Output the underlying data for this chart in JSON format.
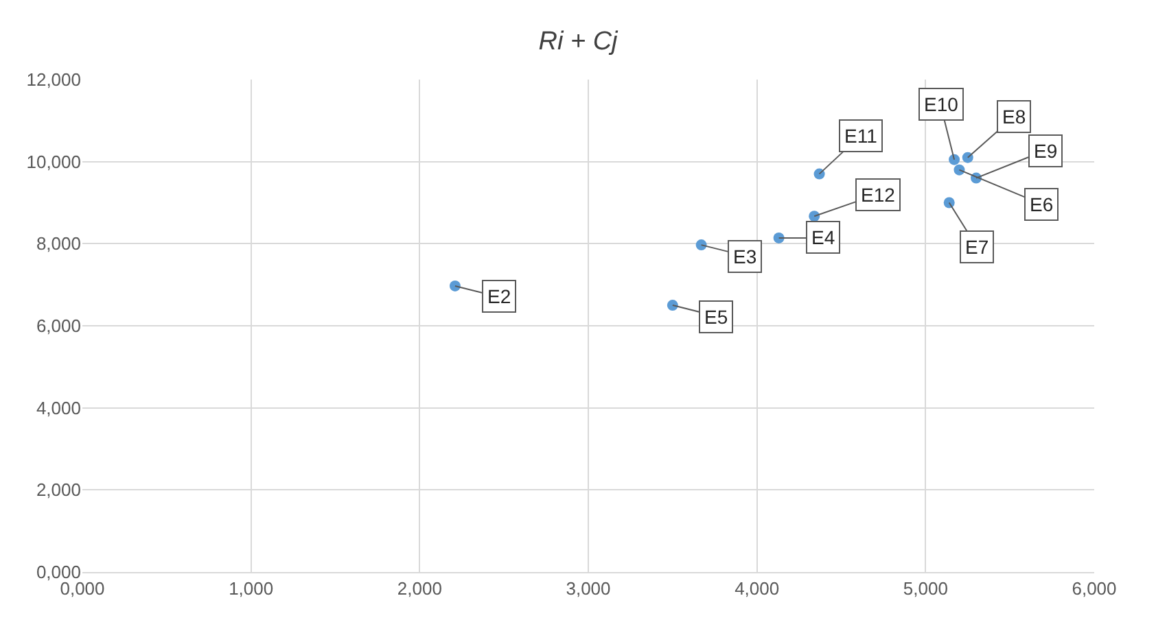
{
  "chart_data": {
    "type": "scatter",
    "title": "Ri + Cj",
    "x": [
      2.21,
      3.67,
      4.13,
      3.5,
      5.2,
      5.14,
      5.25,
      5.3,
      5.17,
      4.37,
      4.34
    ],
    "values": [
      6.97,
      7.97,
      8.14,
      6.5,
      9.8,
      9.0,
      10.1,
      9.6,
      10.05,
      9.7,
      8.67
    ],
    "color": "#5b9bd5",
    "marker": "circle",
    "grid": true,
    "xlim": [
      0,
      6
    ],
    "ylim": [
      0,
      12
    ],
    "xticks": [
      {
        "value": 0,
        "label": "0,000"
      },
      {
        "value": 1,
        "label": "1,000"
      },
      {
        "value": 2,
        "label": "2,000"
      },
      {
        "value": 3,
        "label": "3,000"
      },
      {
        "value": 4,
        "label": "4,000"
      },
      {
        "value": 5,
        "label": "5,000"
      },
      {
        "value": 6,
        "label": "6,000"
      }
    ],
    "yticks": [
      {
        "value": 0,
        "label": "0,000"
      },
      {
        "value": 2,
        "label": "2,000"
      },
      {
        "value": 4,
        "label": "4,000"
      },
      {
        "value": 6,
        "label": "6,000"
      },
      {
        "value": 8,
        "label": "8,000"
      },
      {
        "value": 10,
        "label": "10,000"
      },
      {
        "value": 12,
        "label": "12,000"
      }
    ],
    "annotations": [
      {
        "text": "E2",
        "x": 2.21,
        "y": 6.97
      },
      {
        "text": "E3",
        "x": 3.67,
        "y": 7.97
      },
      {
        "text": "E4",
        "x": 4.13,
        "y": 8.14
      },
      {
        "text": "E5",
        "x": 3.5,
        "y": 6.5
      },
      {
        "text": "E6",
        "x": 5.2,
        "y": 9.8
      },
      {
        "text": "E7",
        "x": 5.14,
        "y": 9.0
      },
      {
        "text": "E8",
        "x": 5.25,
        "y": 10.1
      },
      {
        "text": "E9",
        "x": 5.3,
        "y": 9.6
      },
      {
        "text": "E10",
        "x": 5.17,
        "y": 10.05
      },
      {
        "text": "E11",
        "x": 4.37,
        "y": 9.7
      },
      {
        "text": "E12",
        "x": 4.34,
        "y": 8.67
      }
    ]
  }
}
